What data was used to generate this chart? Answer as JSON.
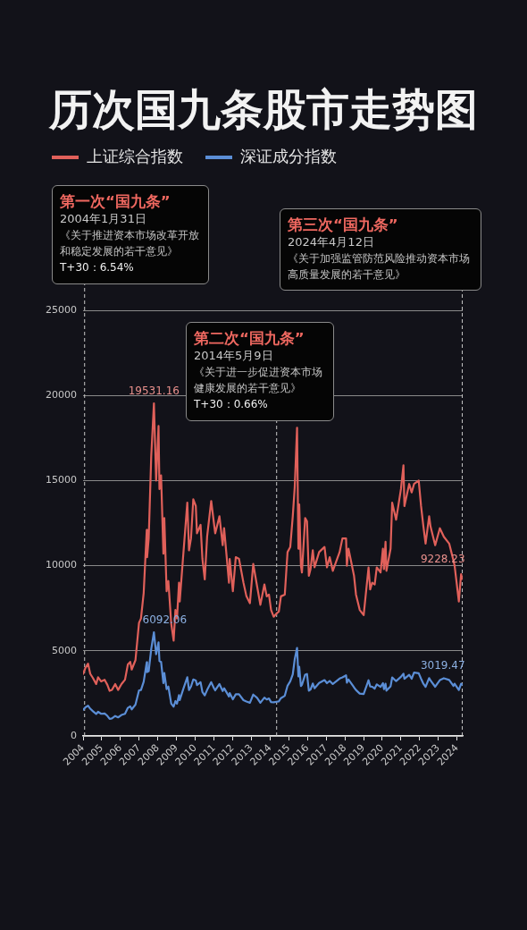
{
  "chart_data": {
    "type": "line",
    "title": "历次国九条股市走势图",
    "x": [
      "2004-01-02",
      "2004-02-16",
      "2004-04-07",
      "2004-05-20",
      "2004-07-12",
      "2004-09-13",
      "2004-10-20",
      "2004-12-20",
      "2005-02-25",
      "2005-04-20",
      "2005-06-03",
      "2005-07-18",
      "2005-09-20",
      "2005-11-15",
      "2006-01-20",
      "2006-03-30",
      "2006-05-25",
      "2006-07-10",
      "2006-08-08",
      "2006-10-20",
      "2006-12-29",
      "2007-02-05",
      "2007-03-30",
      "2007-05-29",
      "2007-06-05",
      "2007-07-06",
      "2007-08-24",
      "2007-10-16",
      "2007-11-28",
      "2008-01-14",
      "2008-02-01",
      "2008-03-04",
      "2008-04-18",
      "2008-05-06",
      "2008-06-20",
      "2008-07-24",
      "2008-09-18",
      "2008-11-04",
      "2008-12-09",
      "2009-01-09",
      "2009-02-17",
      "2009-03-03",
      "2009-05-05",
      "2009-07-29",
      "2009-08-31",
      "2009-10-09",
      "2009-11-23",
      "2010-01-11",
      "2010-02-03",
      "2010-04-14",
      "2010-05-20",
      "2010-07-05",
      "2010-08-20",
      "2010-11-08",
      "2010-12-31",
      "2011-01-25",
      "2011-04-18",
      "2011-06-20",
      "2011-07-18",
      "2011-10-21",
      "2011-11-04",
      "2012-01-05",
      "2012-03-02",
      "2012-05-04",
      "2012-07-30",
      "2012-09-26",
      "2012-12-03",
      "2013-02-06",
      "2013-04-22",
      "2013-06-25",
      "2013-09-12",
      "2013-10-28",
      "2013-12-10",
      "2014-01-20",
      "2014-03-12",
      "2014-05-09",
      "2014-06-20",
      "2014-08-01",
      "2014-10-15",
      "2014-12-08",
      "2015-01-30",
      "2015-03-20",
      "2015-04-27",
      "2015-06-12",
      "2015-07-08",
      "2015-07-24",
      "2015-08-26",
      "2015-09-15",
      "2015-11-17",
      "2015-12-23",
      "2016-01-28",
      "2016-03-01",
      "2016-04-14",
      "2016-05-18",
      "2016-08-16",
      "2016-11-29",
      "2017-01-16",
      "2017-03-10",
      "2017-05-10",
      "2017-09-20",
      "2017-11-14",
      "2018-01-24",
      "2018-02-09",
      "2018-03-12",
      "2018-06-29",
      "2018-08-06",
      "2018-10-18",
      "2019-01-03",
      "2019-04-08",
      "2019-05-10",
      "2019-06-18",
      "2019-08-06",
      "2019-09-16",
      "2019-11-29",
      "2020-01-14",
      "2020-02-03",
      "2020-03-05",
      "2020-03-23",
      "2020-06-12",
      "2020-07-13",
      "2020-09-28",
      "2020-12-31",
      "2021-02-18",
      "2021-03-09",
      "2021-06-10",
      "2021-07-28",
      "2021-09-13",
      "2021-12-13",
      "2022-01-28",
      "2022-03-15",
      "2022-04-26",
      "2022-07-05",
      "2022-08-01",
      "2022-10-31",
      "2023-01-30",
      "2023-04-18",
      "2023-07-31",
      "2023-10-23",
      "2023-11-14",
      "2024-02-05",
      "2024-03-20",
      "2024-04-12"
    ],
    "series": [
      {
        "name": "上证综合指数",
        "color": "#e0605a",
        "values": [
          3650,
          4000,
          4250,
          3650,
          3400,
          3050,
          3450,
          3200,
          3300,
          3000,
          2650,
          2700,
          3050,
          2700,
          3050,
          3300,
          4200,
          4350,
          3900,
          4450,
          6650,
          6900,
          8400,
          12100,
          10500,
          11600,
          16400,
          19531.16,
          15000,
          18200,
          14500,
          15300,
          10700,
          12800,
          8500,
          9100,
          6600,
          5600,
          7400,
          6900,
          9000,
          7900,
          10400,
          13700,
          10900,
          11600,
          13900,
          13500,
          11900,
          12400,
          10400,
          9200,
          11700,
          13800,
          12500,
          11900,
          12900,
          11200,
          12200,
          9000,
          10400,
          8500,
          10500,
          10400,
          9000,
          8200,
          7800,
          10100,
          8800,
          7700,
          8900,
          8200,
          8300,
          7400,
          7000,
          7200,
          7300,
          8200,
          8300,
          10800,
          11100,
          12900,
          14600,
          18100,
          11000,
          13600,
          10000,
          9600,
          12800,
          12600,
          9400,
          9800,
          10900,
          9900,
          10800,
          11100,
          9900,
          10500,
          9700,
          10800,
          11600,
          11600,
          10000,
          11000,
          9400,
          8300,
          7400,
          7100,
          9900,
          8600,
          9000,
          8900,
          9900,
          9600,
          11000,
          9800,
          11400,
          9700,
          11000,
          13700,
          12700,
          14500,
          15900,
          13500,
          14800,
          14300,
          14800,
          15000,
          13500,
          12300,
          11300,
          12900,
          12300,
          11200,
          12200,
          11700,
          11300,
          10300,
          10000,
          7900,
          9500,
          9228.23
        ],
        "value_labels": [
          null,
          null,
          null,
          null,
          null,
          null,
          null,
          null,
          null,
          null,
          null,
          null,
          null,
          null,
          null,
          null,
          null,
          null,
          null,
          null,
          null,
          null,
          null,
          null,
          null,
          null,
          null,
          "19531.16",
          null,
          null,
          null,
          null,
          null,
          null,
          null,
          null,
          null,
          null,
          null,
          null,
          null,
          null,
          null,
          null,
          null,
          null,
          null,
          null,
          null,
          null,
          null,
          null,
          null,
          null,
          null,
          null,
          null,
          null,
          null,
          null,
          null,
          null,
          null,
          null,
          null,
          null,
          null,
          null,
          null,
          null,
          null,
          null,
          null,
          null,
          null,
          null,
          null,
          null,
          null,
          null,
          null,
          null,
          null,
          null,
          null,
          null,
          null,
          null,
          null,
          null,
          null,
          null,
          null,
          null,
          null,
          null,
          null,
          null,
          null,
          null,
          null,
          null,
          null,
          null,
          null,
          null,
          null,
          null,
          null,
          null,
          null,
          null,
          null,
          null,
          null,
          null,
          null,
          null,
          null,
          null,
          null,
          null,
          null,
          null,
          null,
          null,
          null,
          null,
          null,
          null,
          null,
          null,
          null,
          null,
          null,
          null,
          null,
          null,
          null,
          null,
          null,
          "9228.23"
        ]
      },
      {
        "name": "深证成分指数",
        "color": "#5b8ed6",
        "values": [
          1530,
          1680,
          1780,
          1600,
          1450,
          1290,
          1420,
          1300,
          1320,
          1180,
          1000,
          1030,
          1170,
          1090,
          1230,
          1300,
          1650,
          1740,
          1560,
          1840,
          2680,
          2700,
          3180,
          4330,
          3750,
          3800,
          5100,
          6092.06,
          4800,
          5500,
          4400,
          4350,
          3100,
          3700,
          2750,
          2900,
          1900,
          1720,
          2050,
          1900,
          2400,
          2100,
          2700,
          3450,
          2700,
          2900,
          3320,
          3260,
          2990,
          3160,
          2580,
          2380,
          2700,
          3160,
          2810,
          2680,
          3050,
          2640,
          2800,
          2320,
          2520,
          2150,
          2450,
          2450,
          2100,
          2020,
          1950,
          2430,
          2240,
          1950,
          2250,
          2140,
          2200,
          1990,
          1980,
          2010,
          2030,
          2220,
          2360,
          2950,
          3210,
          3620,
          4500,
          5170,
          3500,
          4070,
          2930,
          3000,
          3600,
          3640,
          2660,
          2730,
          3080,
          2800,
          3110,
          3280,
          3100,
          3230,
          3050,
          3370,
          3440,
          3560,
          3130,
          3320,
          2850,
          2700,
          2490,
          2460,
          3270,
          2910,
          2890,
          2780,
          3030,
          2880,
          3100,
          2750,
          3070,
          2660,
          2920,
          3440,
          3220,
          3470,
          3660,
          3360,
          3590,
          3360,
          3720,
          3680,
          3360,
          3060,
          2880,
          3400,
          3260,
          2890,
          3280,
          3390,
          3290,
          2940,
          3070,
          2700,
          3070,
          3019.47
        ],
        "value_labels": [
          null,
          null,
          null,
          null,
          null,
          null,
          null,
          null,
          null,
          null,
          null,
          null,
          null,
          null,
          null,
          null,
          null,
          null,
          null,
          null,
          null,
          null,
          null,
          null,
          null,
          null,
          null,
          "6092.06",
          null,
          null,
          null,
          null,
          null,
          null,
          null,
          null,
          null,
          null,
          null,
          null,
          null,
          null,
          null,
          null,
          null,
          null,
          null,
          null,
          null,
          null,
          null,
          null,
          null,
          null,
          null,
          null,
          null,
          null,
          null,
          null,
          null,
          null,
          null,
          null,
          null,
          null,
          null,
          null,
          null,
          null,
          null,
          null,
          null,
          null,
          null,
          null,
          null,
          null,
          null,
          null,
          null,
          null,
          null,
          null,
          null,
          null,
          null,
          null,
          null,
          null,
          null,
          null,
          null,
          null,
          null,
          null,
          null,
          null,
          null,
          null,
          null,
          null,
          null,
          null,
          null,
          null,
          null,
          null,
          null,
          null,
          null,
          null,
          null,
          null,
          null,
          null,
          null,
          null,
          null,
          null,
          null,
          null,
          null,
          null,
          null,
          null,
          null,
          null,
          null,
          null,
          null,
          null,
          null,
          null,
          null,
          null,
          null,
          null,
          null,
          null,
          null,
          "3019.47"
        ]
      }
    ],
    "xlim": [
      "2004-01-01",
      "2024-04-20"
    ],
    "xticks": [
      "2004",
      "2005",
      "2006",
      "2007",
      "2008",
      "2009",
      "2010",
      "2011",
      "2012",
      "2013",
      "2014",
      "2015",
      "2016",
      "2017",
      "2018",
      "2019",
      "2020",
      "2021",
      "2022",
      "2023",
      "2024"
    ],
    "ylim": [
      0,
      25000
    ],
    "yticks": [
      0,
      5000,
      10000,
      15000,
      20000,
      25000
    ],
    "grid": "y",
    "legend": "top left",
    "marker": "none",
    "line_style": "solid",
    "ref_lines": [
      {
        "axis": "x",
        "value": "2004-01-31",
        "color": "#c8c8c8",
        "line_style": "dashed"
      },
      {
        "axis": "x",
        "value": "2014-05-09",
        "color": "#c8c8c8",
        "line_style": "dashed"
      },
      {
        "axis": "x",
        "value": "2024-04-12",
        "color": "#c8c8c8",
        "line_style": "dashed"
      }
    ],
    "annotations": [
      "第一次“国九条”",
      "2004年1月31日",
      "《关于推进资本市场改革开放和稳定发展的若干意见》",
      "T+30：6.54%",
      "第二次“国九条”",
      "2014年5月9日",
      "《关于进一步促进资本市场健康发展的若干意见》",
      "T+30：0.66%",
      "第三次“国九条”",
      "2024年4月12日",
      "《关于加强监管防范风险推动资本市场高质量发展的若干意见》"
    ]
  }
}
